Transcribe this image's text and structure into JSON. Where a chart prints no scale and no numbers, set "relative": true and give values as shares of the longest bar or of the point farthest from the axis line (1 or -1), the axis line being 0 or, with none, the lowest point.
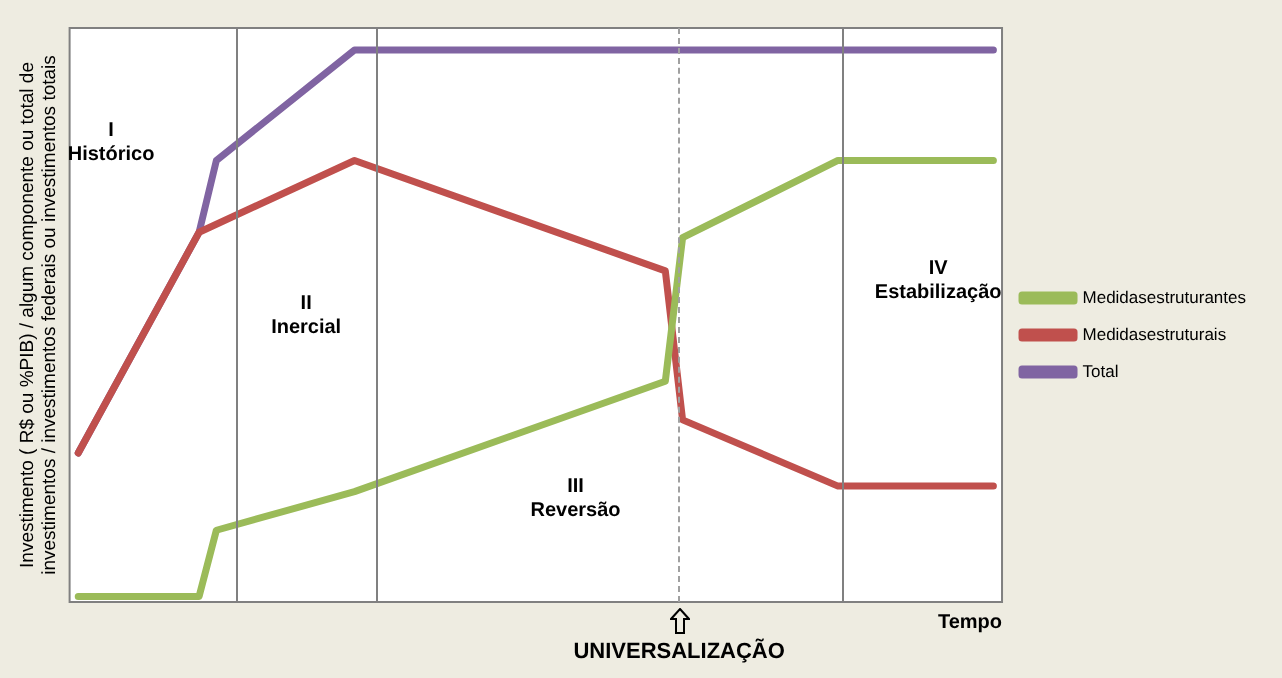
{
  "chart_data": {
    "type": "line",
    "relative": true,
    "xlabel": "Tempo",
    "ylabel": "Investimento ( R$ ou %PIB) / algum componente ou total de investimentos / investimentos federais ou investimentos totais",
    "legend": "right",
    "categories": [
      null,
      null,
      null,
      null,
      null,
      null,
      null,
      null,
      null,
      null,
      null,
      null,
      null,
      null,
      null,
      null,
      null,
      null,
      null,
      null,
      null,
      null,
      null,
      null,
      null,
      null,
      null,
      null,
      null,
      null,
      null,
      null,
      null,
      null,
      null,
      null,
      null,
      null,
      null,
      null,
      null,
      null,
      null,
      null,
      null,
      null,
      null,
      null,
      null,
      null,
      null,
      null,
      null,
      null
    ],
    "series": [
      {
        "name": "Medidasestruturantes",
        "color": "#9bbb59",
        "values": [
          0.01,
          null,
          null,
          null,
          null,
          null,
          null,
          0.01,
          0.13,
          null,
          null,
          null,
          null,
          null,
          null,
          null,
          0.2,
          null,
          null,
          null,
          null,
          null,
          null,
          null,
          null,
          null,
          null,
          null,
          null,
          null,
          null,
          null,
          null,
          null,
          0.4,
          0.66,
          null,
          null,
          null,
          null,
          null,
          null,
          null,
          null,
          0.8,
          null,
          null,
          null,
          null,
          null,
          null,
          null,
          null,
          0.8
        ]
      },
      {
        "name": "Medidasestruturais",
        "color": "#c0504d",
        "values": [
          0.27,
          null,
          null,
          null,
          null,
          null,
          null,
          0.67,
          null,
          null,
          null,
          null,
          null,
          null,
          null,
          null,
          0.8,
          null,
          null,
          null,
          null,
          null,
          null,
          null,
          null,
          null,
          null,
          null,
          null,
          null,
          null,
          null,
          null,
          null,
          0.6,
          0.33,
          null,
          null,
          null,
          null,
          null,
          null,
          null,
          null,
          0.21,
          null,
          null,
          null,
          null,
          null,
          null,
          null,
          null,
          0.21
        ]
      },
      {
        "name": "Total",
        "color": "#8064a2",
        "values": [
          0.27,
          null,
          null,
          null,
          null,
          null,
          null,
          0.67,
          0.8,
          null,
          null,
          null,
          null,
          null,
          null,
          null,
          1,
          null,
          null,
          null,
          null,
          null,
          null,
          null,
          null,
          null,
          null,
          null,
          null,
          null,
          null,
          null,
          null,
          null,
          null,
          null,
          null,
          null,
          null,
          null,
          null,
          null,
          null,
          null,
          null,
          null,
          null,
          null,
          null,
          null,
          null,
          null,
          null,
          1
        ]
      }
    ],
    "annotations": [
      "I\nHistórico",
      "II\nInercial",
      "III\nReversão",
      "IV\nEstabilização",
      "UNIVERSALIZAÇÃO"
    ]
  }
}
